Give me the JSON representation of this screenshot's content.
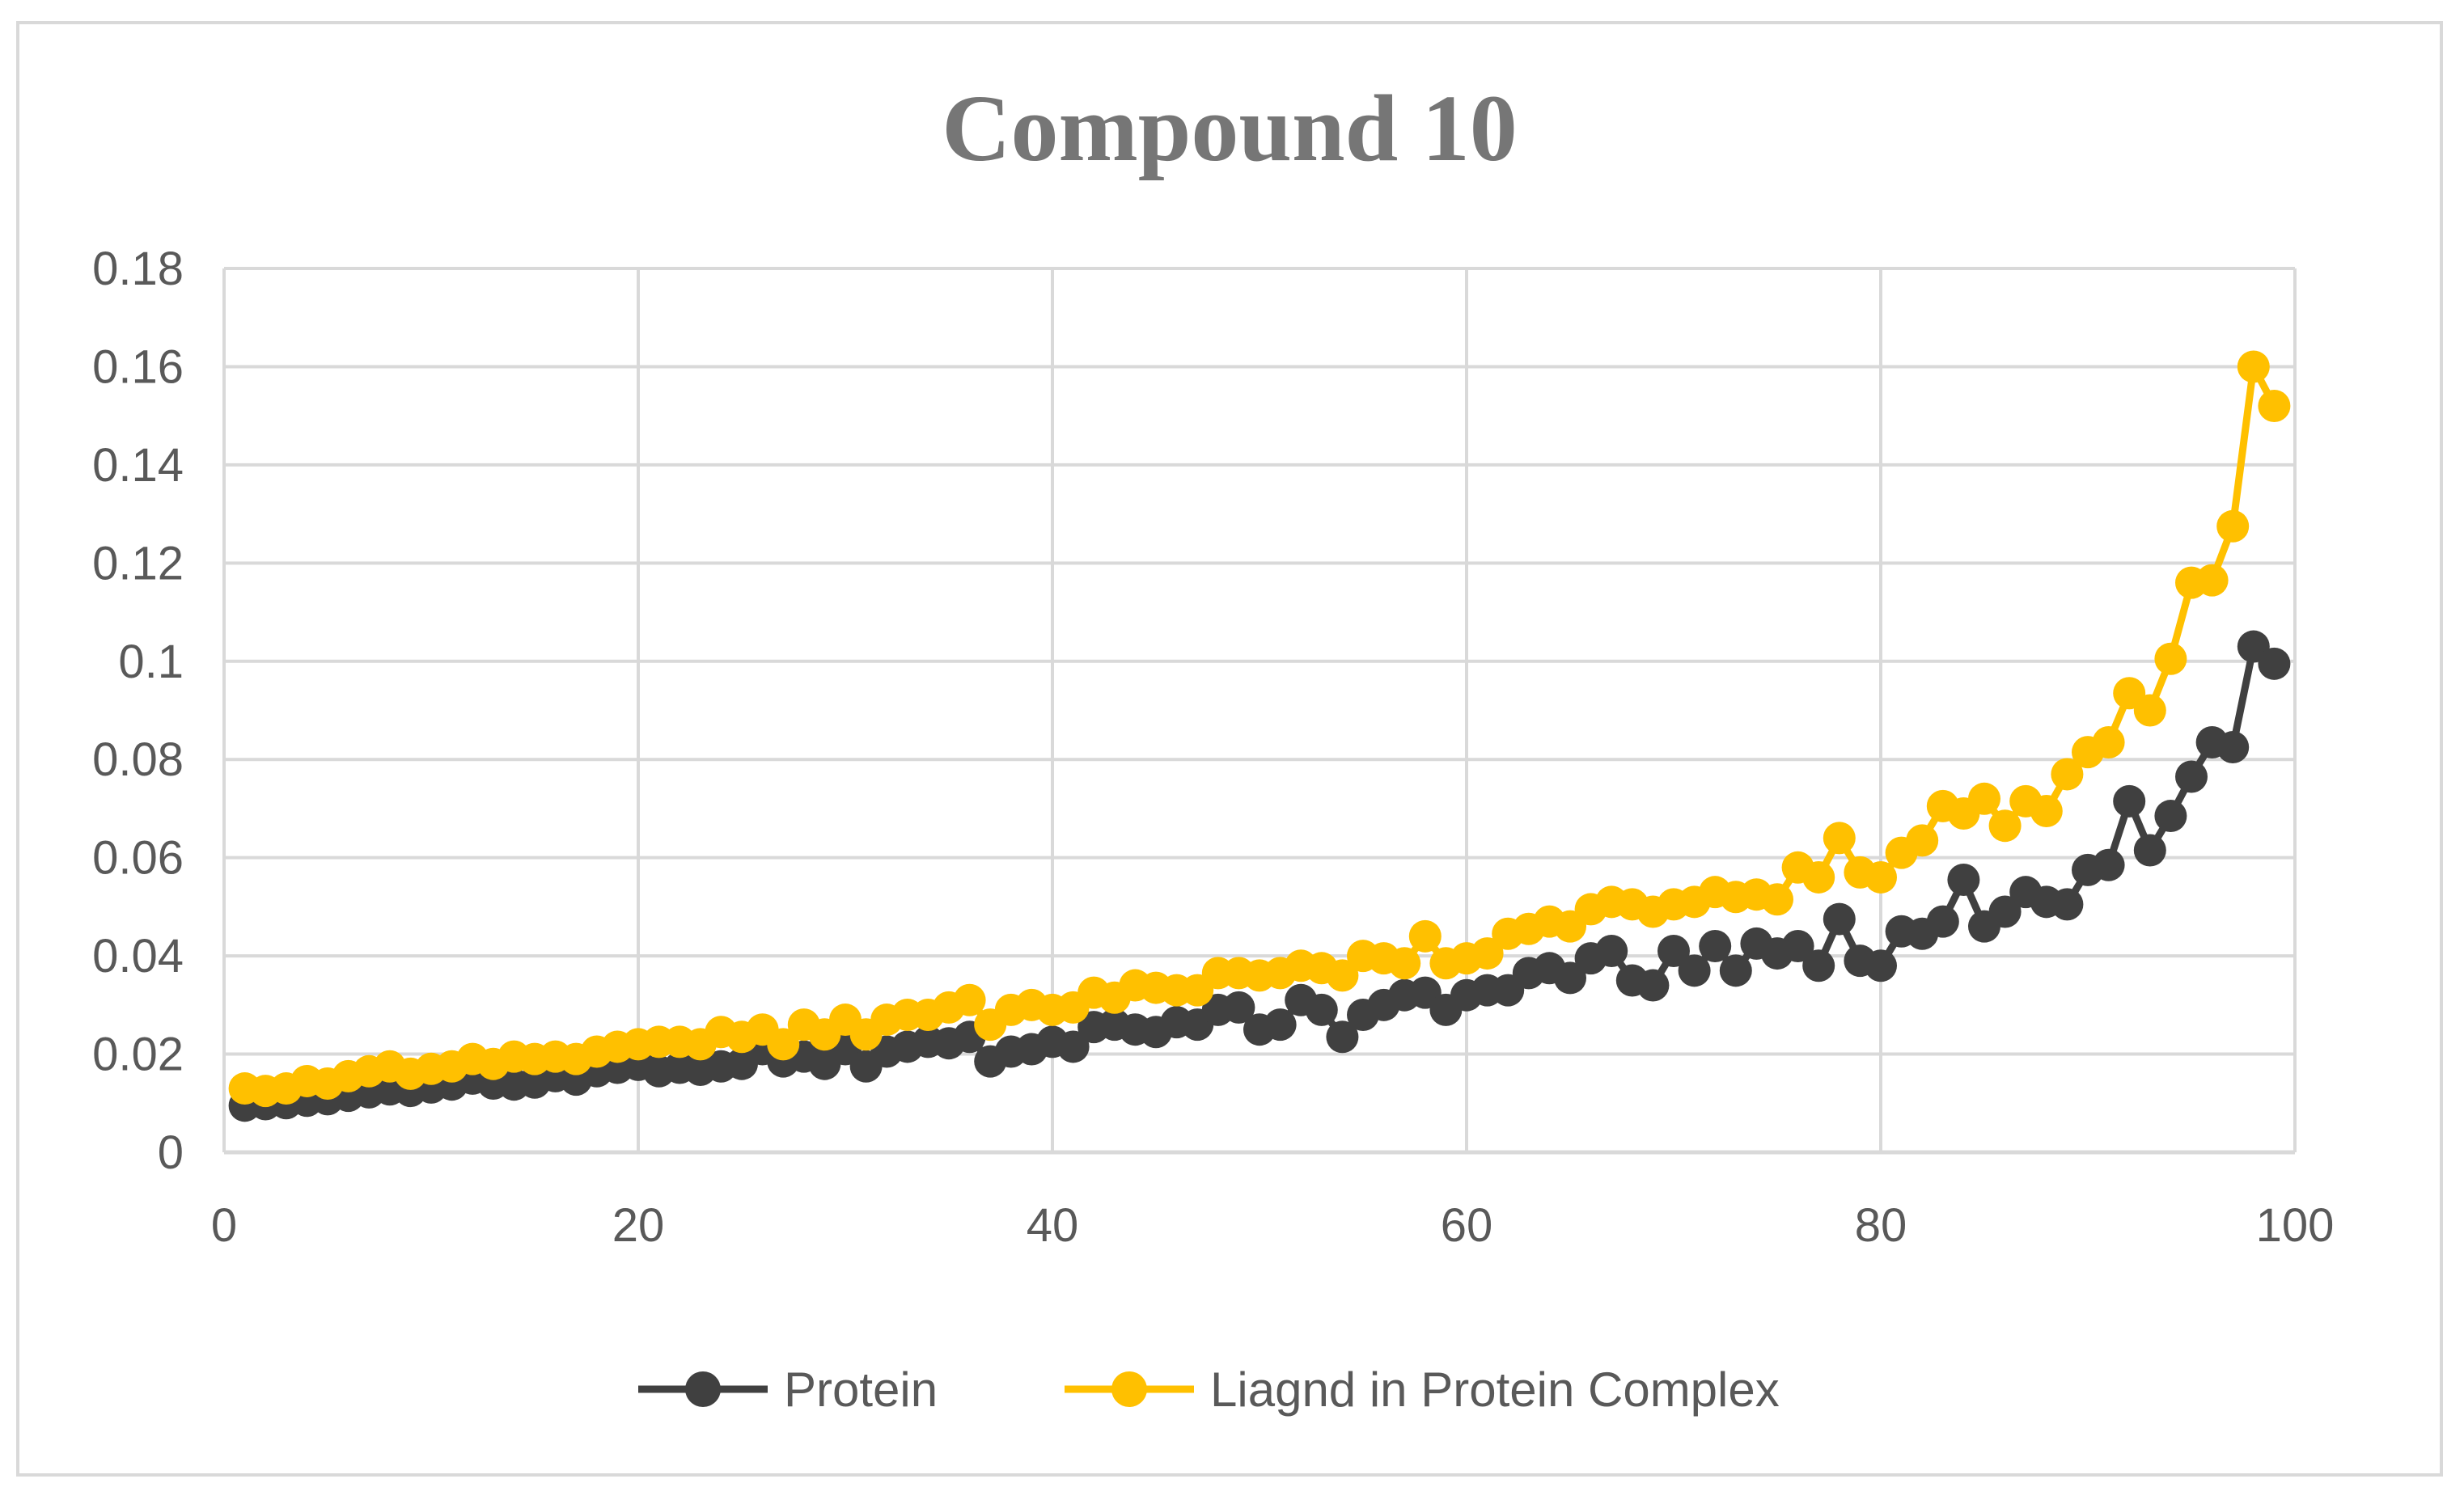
{
  "chart_data": {
    "type": "line",
    "title": "Compound 10",
    "xlabel": "",
    "ylabel": "",
    "xlim": [
      0,
      100
    ],
    "ylim": [
      0,
      0.18
    ],
    "x_ticks": [
      "0",
      "20",
      "40",
      "60",
      "80",
      "100"
    ],
    "y_ticks": [
      "0",
      "0.02",
      "0.04",
      "0.06",
      "0.08",
      "0.1",
      "0.12",
      "0.14",
      "0.16",
      "0.18"
    ],
    "x_tick_values": [
      0,
      20,
      40,
      60,
      80,
      100
    ],
    "y_tick_values": [
      0,
      0.02,
      0.04,
      0.06,
      0.08,
      0.1,
      0.12,
      0.14,
      0.16,
      0.18
    ],
    "grid": true,
    "legend_position": "bottom",
    "x": [
      1,
      2,
      3,
      4,
      5,
      6,
      7,
      8,
      9,
      10,
      11,
      12,
      13,
      14,
      15,
      16,
      17,
      18,
      19,
      20,
      21,
      22,
      23,
      24,
      25,
      26,
      27,
      28,
      29,
      30,
      31,
      32,
      33,
      34,
      35,
      36,
      37,
      38,
      39,
      40,
      41,
      42,
      43,
      44,
      45,
      46,
      47,
      48,
      49,
      50,
      51,
      52,
      53,
      54,
      55,
      56,
      57,
      58,
      59,
      60,
      61,
      62,
      63,
      64,
      65,
      66,
      67,
      68,
      69,
      70,
      71,
      72,
      73,
      74,
      75,
      76,
      77,
      78,
      79,
      80,
      81,
      82,
      83,
      84,
      85,
      86,
      87,
      88,
      89,
      90,
      91,
      92,
      93,
      94,
      95,
      96,
      97,
      98,
      99
    ],
    "series": [
      {
        "name": "Protein",
        "color": "#404040",
        "values": [
          0.0095,
          0.0098,
          0.01,
          0.0105,
          0.0108,
          0.0115,
          0.0122,
          0.0128,
          0.0125,
          0.0132,
          0.0138,
          0.015,
          0.014,
          0.0138,
          0.0142,
          0.0155,
          0.0148,
          0.0165,
          0.0172,
          0.0178,
          0.0165,
          0.0172,
          0.0168,
          0.0175,
          0.018,
          0.021,
          0.0185,
          0.0195,
          0.018,
          0.021,
          0.0175,
          0.0205,
          0.0215,
          0.0225,
          0.0222,
          0.0235,
          0.0185,
          0.0205,
          0.021,
          0.0225,
          0.0215,
          0.0255,
          0.026,
          0.025,
          0.0245,
          0.0265,
          0.026,
          0.029,
          0.0295,
          0.025,
          0.026,
          0.031,
          0.029,
          0.0235,
          0.028,
          0.03,
          0.032,
          0.0325,
          0.029,
          0.032,
          0.033,
          0.033,
          0.0365,
          0.0375,
          0.0355,
          0.0395,
          0.041,
          0.035,
          0.034,
          0.041,
          0.037,
          0.042,
          0.037,
          0.0425,
          0.0405,
          0.042,
          0.038,
          0.0475,
          0.039,
          0.038,
          0.045,
          0.0445,
          0.047,
          0.0555,
          0.046,
          0.049,
          0.053,
          0.051,
          0.0505,
          0.0575,
          0.0585,
          0.0715,
          0.0615,
          0.0685,
          0.0765,
          0.0835,
          0.0825,
          0.103,
          0.0995
        ]
      },
      {
        "name": "Liagnd in Protein Complex",
        "color": "#ffc000",
        "values": [
          0.013,
          0.0125,
          0.013,
          0.0145,
          0.014,
          0.0155,
          0.0165,
          0.0175,
          0.016,
          0.017,
          0.0175,
          0.019,
          0.018,
          0.0195,
          0.019,
          0.0195,
          0.019,
          0.0205,
          0.0215,
          0.022,
          0.0225,
          0.0225,
          0.022,
          0.0245,
          0.0235,
          0.025,
          0.022,
          0.026,
          0.024,
          0.027,
          0.024,
          0.027,
          0.028,
          0.028,
          0.0295,
          0.031,
          0.026,
          0.029,
          0.03,
          0.029,
          0.0295,
          0.0325,
          0.0315,
          0.034,
          0.0335,
          0.033,
          0.033,
          0.0365,
          0.0365,
          0.036,
          0.0365,
          0.038,
          0.0375,
          0.036,
          0.04,
          0.0395,
          0.0385,
          0.044,
          0.0385,
          0.0395,
          0.0405,
          0.0445,
          0.0455,
          0.047,
          0.046,
          0.0495,
          0.051,
          0.0505,
          0.049,
          0.0505,
          0.051,
          0.053,
          0.052,
          0.0525,
          0.0515,
          0.058,
          0.056,
          0.064,
          0.057,
          0.056,
          0.061,
          0.0635,
          0.0705,
          0.069,
          0.072,
          0.0665,
          0.0715,
          0.0695,
          0.077,
          0.0815,
          0.0835,
          0.0935,
          0.09,
          0.1005,
          0.116,
          0.1165,
          0.1275,
          0.16,
          0.152
        ]
      }
    ]
  }
}
